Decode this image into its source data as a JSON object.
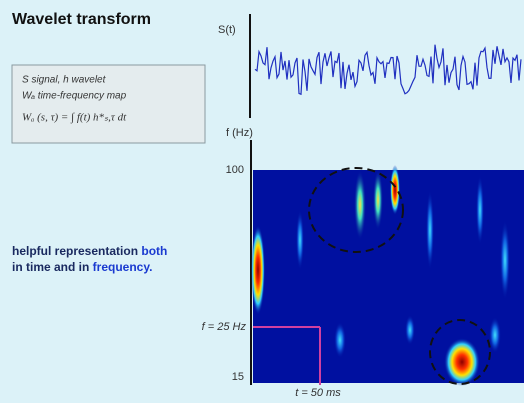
{
  "header": {
    "title": "Wavelet transform"
  },
  "legend_box": {
    "lines": [
      "S signal, h wavelet",
      "Wₐ time-frequency map",
      "Wₐ (s, τ) = ∫ f(t) h*ₛ,τ dt"
    ]
  },
  "note": {
    "parts": [
      "helpful representation ",
      "both",
      "in time and in ",
      "frequency."
    ]
  },
  "signal_plot": {
    "label": "S(t)"
  },
  "scalogram": {
    "axis_label": "f (Hz)",
    "top_tick": "100",
    "bottom_tick": "15",
    "freq_marker": "f = 25 Hz",
    "time_marker": "t = 50 ms"
  }
}
